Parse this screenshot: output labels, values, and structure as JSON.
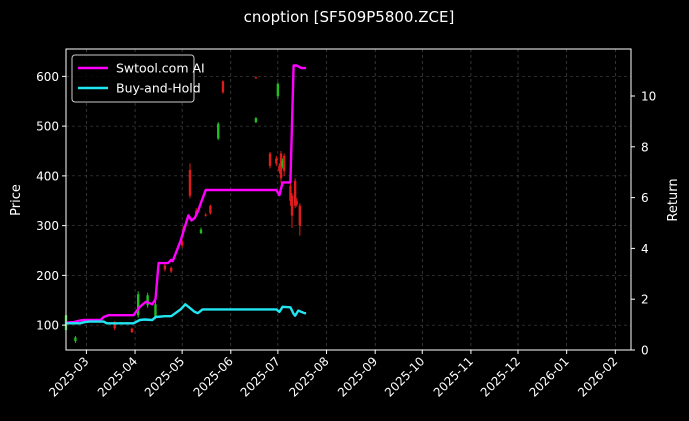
{
  "chart_data": {
    "type": "line",
    "title": "cnoption [SF509P5800.ZCE]",
    "ylabel": "Price",
    "y2label": "Return",
    "ylim": [
      50,
      655
    ],
    "y2lim": [
      0,
      11.85
    ],
    "yticks": [
      100,
      200,
      300,
      400,
      500,
      600
    ],
    "y2ticks": [
      0,
      2,
      4,
      6,
      8,
      10
    ],
    "xlim": [
      "2025-02-16",
      "2026-02-11"
    ],
    "xticks": [
      "2025-03",
      "2025-04",
      "2025-05",
      "2025-06",
      "2025-07",
      "2025-08",
      "2025-09",
      "2025-10",
      "2025-11",
      "2025-12",
      "2026-01",
      "2026-02"
    ],
    "grid": true,
    "legend": {
      "position": "top-left",
      "entries": [
        {
          "name": "Swtool.com AI",
          "color": "#ff00ff"
        },
        {
          "name": "Buy-and-Hold",
          "color": "#22e5f2"
        }
      ]
    },
    "series": [
      {
        "name": "Swtool.com AI",
        "axis": "right",
        "color": "#ff00ff",
        "x": [
          "2025-02-16",
          "2025-02-21",
          "2025-02-24",
          "2025-02-27",
          "2025-03-03",
          "2025-03-10",
          "2025-03-12",
          "2025-03-15",
          "2025-03-31",
          "2025-04-04",
          "2025-04-08",
          "2025-04-12",
          "2025-04-14",
          "2025-04-16",
          "2025-04-18",
          "2025-04-20",
          "2025-04-22",
          "2025-04-24",
          "2025-04-25",
          "2025-04-30",
          "2025-05-03",
          "2025-05-05",
          "2025-05-07",
          "2025-05-09",
          "2025-05-11",
          "2025-05-13",
          "2025-05-16",
          "2025-05-19",
          "2025-06-30",
          "2025-07-02",
          "2025-07-04",
          "2025-07-09",
          "2025-07-11",
          "2025-07-13",
          "2025-07-16",
          "2025-07-19"
        ],
        "values": [
          1.08,
          1.1,
          1.15,
          1.18,
          1.18,
          1.18,
          1.3,
          1.37,
          1.37,
          1.7,
          1.9,
          1.8,
          2.0,
          3.42,
          3.42,
          3.42,
          3.42,
          3.55,
          3.5,
          4.3,
          4.9,
          5.3,
          5.1,
          5.2,
          5.45,
          5.8,
          6.3,
          6.3,
          6.3,
          6.1,
          6.6,
          6.6,
          11.2,
          11.2,
          11.1,
          11.1
        ]
      },
      {
        "name": "Buy-and-Hold",
        "axis": "right",
        "color": "#22e5f2",
        "x": [
          "2025-02-16",
          "2025-02-25",
          "2025-02-28",
          "2025-03-03",
          "2025-03-12",
          "2025-03-14",
          "2025-03-31",
          "2025-04-04",
          "2025-04-07",
          "2025-04-12",
          "2025-04-14",
          "2025-04-20",
          "2025-04-24",
          "2025-04-30",
          "2025-05-03",
          "2025-05-06",
          "2025-05-09",
          "2025-05-11",
          "2025-05-14",
          "2025-05-17",
          "2025-06-30",
          "2025-07-02",
          "2025-07-04",
          "2025-07-09",
          "2025-07-11",
          "2025-07-12",
          "2025-07-14",
          "2025-07-18",
          "2025-07-19"
        ],
        "values": [
          1.05,
          1.05,
          1.1,
          1.12,
          1.12,
          1.05,
          1.05,
          1.18,
          1.2,
          1.18,
          1.3,
          1.33,
          1.33,
          1.6,
          1.8,
          1.65,
          1.5,
          1.45,
          1.6,
          1.6,
          1.6,
          1.5,
          1.7,
          1.68,
          1.42,
          1.35,
          1.55,
          1.45,
          1.45
        ]
      }
    ],
    "candles": {
      "up_color": "#1fbf1f",
      "down_color": "#e01b1b",
      "items": [
        {
          "d": "2025-02-16",
          "o": 90,
          "c": 120,
          "h": 128,
          "l": 82
        },
        {
          "d": "2025-02-22",
          "o": 68,
          "c": 75,
          "h": 78,
          "l": 64
        },
        {
          "d": "2025-03-19",
          "o": 105,
          "c": 94,
          "h": 108,
          "l": 90
        },
        {
          "d": "2025-03-30",
          "o": 93,
          "c": 86,
          "h": 95,
          "l": 84
        },
        {
          "d": "2025-04-03",
          "o": 120,
          "c": 162,
          "h": 168,
          "l": 115
        },
        {
          "d": "2025-04-09",
          "o": 140,
          "c": 160,
          "h": 165,
          "l": 135
        },
        {
          "d": "2025-04-14",
          "o": 118,
          "c": 142,
          "h": 148,
          "l": 112
        },
        {
          "d": "2025-04-20",
          "o": 220,
          "c": 212,
          "h": 224,
          "l": 208
        },
        {
          "d": "2025-04-24",
          "o": 215,
          "c": 208,
          "h": 218,
          "l": 205
        },
        {
          "d": "2025-05-01",
          "o": 268,
          "c": 260,
          "h": 272,
          "l": 255
        },
        {
          "d": "2025-05-02",
          "o": 298,
          "c": 292,
          "h": 300,
          "l": 288
        },
        {
          "d": "2025-05-06",
          "o": 412,
          "c": 360,
          "h": 425,
          "l": 355
        },
        {
          "d": "2025-05-10",
          "o": 330,
          "c": 322,
          "h": 335,
          "l": 318
        },
        {
          "d": "2025-05-13",
          "o": 285,
          "c": 292,
          "h": 296,
          "l": 283
        },
        {
          "d": "2025-05-16",
          "o": 322,
          "c": 320,
          "h": 325,
          "l": 318
        },
        {
          "d": "2025-05-19",
          "o": 340,
          "c": 325,
          "h": 342,
          "l": 322
        },
        {
          "d": "2025-05-24",
          "o": 475,
          "c": 505,
          "h": 508,
          "l": 472
        },
        {
          "d": "2025-05-27",
          "o": 590,
          "c": 568,
          "h": 592,
          "l": 565
        },
        {
          "d": "2025-06-17",
          "o": 508,
          "c": 516,
          "h": 518,
          "l": 506
        },
        {
          "d": "2025-06-17",
          "o": 598,
          "c": 596,
          "h": 600,
          "l": 595
        },
        {
          "d": "2025-06-26",
          "o": 445,
          "c": 420,
          "h": 448,
          "l": 415
        },
        {
          "d": "2025-06-30",
          "o": 435,
          "c": 425,
          "h": 440,
          "l": 420
        },
        {
          "d": "2025-07-01",
          "o": 560,
          "c": 585,
          "h": 588,
          "l": 555
        },
        {
          "d": "2025-07-02",
          "o": 420,
          "c": 410,
          "h": 425,
          "l": 405
        },
        {
          "d": "2025-07-03",
          "o": 445,
          "c": 395,
          "h": 450,
          "l": 385
        },
        {
          "d": "2025-07-04",
          "o": 420,
          "c": 430,
          "h": 435,
          "l": 415
        },
        {
          "d": "2025-07-05",
          "o": 440,
          "c": 410,
          "h": 445,
          "l": 400
        },
        {
          "d": "2025-07-09",
          "o": 380,
          "c": 350,
          "h": 385,
          "l": 340
        },
        {
          "d": "2025-07-10",
          "o": 360,
          "c": 320,
          "h": 365,
          "l": 295
        },
        {
          "d": "2025-07-12",
          "o": 390,
          "c": 340,
          "h": 395,
          "l": 335
        },
        {
          "d": "2025-07-13",
          "o": 350,
          "c": 342,
          "h": 355,
          "l": 338
        },
        {
          "d": "2025-07-15",
          "o": 340,
          "c": 300,
          "h": 345,
          "l": 280
        }
      ]
    }
  }
}
